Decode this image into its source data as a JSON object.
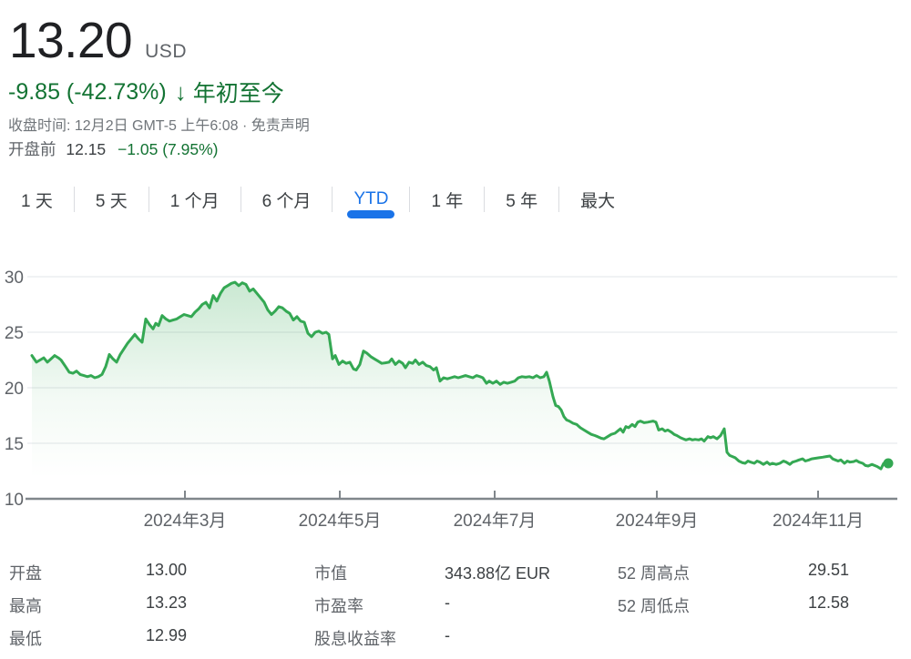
{
  "colors": {
    "accent_blue": "#1a73e8",
    "text_dark": "#202124",
    "text_gray": "#5f6368",
    "text_value": "#3c4043",
    "green_text": "#137333",
    "line_green": "#34a853",
    "grid": "#e8eaed",
    "axis": "#80868b",
    "divider": "#dadce0"
  },
  "header": {
    "price": "13.20",
    "currency": "USD",
    "change": "-9.85 (-42.73%)",
    "arrow": "↓",
    "period": "年初至今",
    "close_info": "收盘时间: 12月2日 GMT-5 上午6:08 · 免责声明",
    "premarket": {
      "label": "开盘前",
      "price": "12.15",
      "change": "−1.05 (7.95%)"
    }
  },
  "tabs": [
    {
      "key": "1d",
      "label": "1 天",
      "selected": false
    },
    {
      "key": "5d",
      "label": "5 天",
      "selected": false
    },
    {
      "key": "1m",
      "label": "1 个月",
      "selected": false
    },
    {
      "key": "6m",
      "label": "6 个月",
      "selected": false
    },
    {
      "key": "ytd",
      "label": "YTD",
      "selected": true
    },
    {
      "key": "1y",
      "label": "1 年",
      "selected": false
    },
    {
      "key": "5y",
      "label": "5 年",
      "selected": false
    },
    {
      "key": "max",
      "label": "最大",
      "selected": false
    }
  ],
  "chart_data": {
    "type": "area",
    "title": "YTD price chart",
    "xlabel": "",
    "ylabel": "",
    "ylim": [
      10,
      30
    ],
    "yticks": [
      30,
      25,
      20,
      15,
      10
    ],
    "grid": true,
    "legend": false,
    "end_dot": true,
    "xticks": [
      {
        "label": "2024年3月",
        "x": 168
      },
      {
        "label": "2024年5月",
        "x": 338
      },
      {
        "label": "2024年7月",
        "x": 508
      },
      {
        "label": "2024年9月",
        "x": 686
      },
      {
        "label": "2024年11月",
        "x": 863
      }
    ],
    "x_range": [
      0,
      940
    ],
    "points": [
      [
        0,
        22.9
      ],
      [
        5,
        22.3
      ],
      [
        9,
        22.5
      ],
      [
        13,
        22.7
      ],
      [
        17,
        22.3
      ],
      [
        21,
        22.6
      ],
      [
        25,
        22.9
      ],
      [
        29,
        22.7
      ],
      [
        32,
        22.5
      ],
      [
        37,
        21.9
      ],
      [
        41,
        21.4
      ],
      [
        45,
        21.3
      ],
      [
        49,
        21.5
      ],
      [
        53,
        21.2
      ],
      [
        57,
        21.1
      ],
      [
        61,
        21.0
      ],
      [
        65,
        21.1
      ],
      [
        69,
        20.9
      ],
      [
        73,
        21.0
      ],
      [
        77,
        21.2
      ],
      [
        81,
        21.9
      ],
      [
        85,
        23.0
      ],
      [
        89,
        22.6
      ],
      [
        93,
        22.3
      ],
      [
        97,
        23.0
      ],
      [
        101,
        23.5
      ],
      [
        105,
        24.0
      ],
      [
        109,
        24.4
      ],
      [
        113,
        24.8
      ],
      [
        117,
        24.4
      ],
      [
        121,
        24.1
      ],
      [
        125,
        26.2
      ],
      [
        129,
        25.7
      ],
      [
        133,
        25.3
      ],
      [
        136,
        25.8
      ],
      [
        139,
        25.6
      ],
      [
        143,
        26.5
      ],
      [
        147,
        26.2
      ],
      [
        151,
        26.0
      ],
      [
        155,
        26.1
      ],
      [
        159,
        26.2
      ],
      [
        163,
        26.4
      ],
      [
        167,
        26.6
      ],
      [
        171,
        26.5
      ],
      [
        175,
        26.4
      ],
      [
        179,
        26.8
      ],
      [
        183,
        27.1
      ],
      [
        187,
        27.5
      ],
      [
        191,
        27.7
      ],
      [
        195,
        27.2
      ],
      [
        199,
        28.3
      ],
      [
        203,
        27.8
      ],
      [
        207,
        28.5
      ],
      [
        211,
        29.0
      ],
      [
        215,
        29.2
      ],
      [
        219,
        29.4
      ],
      [
        223,
        29.5
      ],
      [
        227,
        29.2
      ],
      [
        231,
        29.45
      ],
      [
        235,
        29.3
      ],
      [
        239,
        28.7
      ],
      [
        243,
        28.9
      ],
      [
        247,
        28.5
      ],
      [
        251,
        28.1
      ],
      [
        255,
        27.7
      ],
      [
        259,
        27.0
      ],
      [
        263,
        26.6
      ],
      [
        267,
        26.9
      ],
      [
        271,
        27.3
      ],
      [
        275,
        27.2
      ],
      [
        279,
        26.9
      ],
      [
        283,
        26.7
      ],
      [
        287,
        26.1
      ],
      [
        291,
        26.4
      ],
      [
        295,
        26.0
      ],
      [
        299,
        25.9
      ],
      [
        303,
        24.9
      ],
      [
        307,
        24.6
      ],
      [
        311,
        25.0
      ],
      [
        315,
        25.1
      ],
      [
        319,
        24.9
      ],
      [
        323,
        25.0
      ],
      [
        326,
        24.8
      ],
      [
        330,
        22.6
      ],
      [
        333,
        22.9
      ],
      [
        337,
        22.1
      ],
      [
        341,
        22.4
      ],
      [
        345,
        22.2
      ],
      [
        349,
        22.3
      ],
      [
        353,
        21.7
      ],
      [
        356,
        21.6
      ],
      [
        360,
        22.1
      ],
      [
        364,
        23.3
      ],
      [
        368,
        23.1
      ],
      [
        372,
        22.8
      ],
      [
        376,
        22.6
      ],
      [
        380,
        22.4
      ],
      [
        384,
        22.2
      ],
      [
        388,
        22.25
      ],
      [
        392,
        22.3
      ],
      [
        395,
        22.6
      ],
      [
        399,
        22.1
      ],
      [
        403,
        22.4
      ],
      [
        407,
        22.2
      ],
      [
        410,
        21.8
      ],
      [
        414,
        22.3
      ],
      [
        418,
        22.2
      ],
      [
        421,
        22.5
      ],
      [
        425,
        22.1
      ],
      [
        429,
        22.3
      ],
      [
        433,
        22.0
      ],
      [
        437,
        21.9
      ],
      [
        441,
        21.6
      ],
      [
        444,
        21.8
      ],
      [
        448,
        20.6
      ],
      [
        452,
        20.9
      ],
      [
        456,
        20.8
      ],
      [
        460,
        20.9
      ],
      [
        464,
        21.0
      ],
      [
        468,
        20.9
      ],
      [
        472,
        21.0
      ],
      [
        476,
        21.1
      ],
      [
        480,
        21.0
      ],
      [
        484,
        20.9
      ],
      [
        488,
        21.1
      ],
      [
        492,
        21.0
      ],
      [
        495,
        20.9
      ],
      [
        499,
        20.4
      ],
      [
        502,
        20.6
      ],
      [
        506,
        20.4
      ],
      [
        510,
        20.6
      ],
      [
        514,
        20.3
      ],
      [
        518,
        20.5
      ],
      [
        522,
        20.4
      ],
      [
        526,
        20.5
      ],
      [
        530,
        20.6
      ],
      [
        534,
        20.9
      ],
      [
        538,
        21.0
      ],
      [
        542,
        20.95
      ],
      [
        546,
        21.0
      ],
      [
        550,
        20.9
      ],
      [
        554,
        21.1
      ],
      [
        558,
        20.9
      ],
      [
        562,
        21.0
      ],
      [
        565,
        21.4
      ],
      [
        568,
        20.6
      ],
      [
        572,
        19.2
      ],
      [
        575,
        18.4
      ],
      [
        578,
        18.3
      ],
      [
        581,
        18.0
      ],
      [
        584,
        17.4
      ],
      [
        587,
        17.1
      ],
      [
        590,
        17.0
      ],
      [
        594,
        16.8
      ],
      [
        598,
        16.7
      ],
      [
        602,
        16.4
      ],
      [
        606,
        16.2
      ],
      [
        610,
        16.0
      ],
      [
        614,
        15.8
      ],
      [
        618,
        15.7
      ],
      [
        621,
        15.6
      ],
      [
        625,
        15.45
      ],
      [
        628,
        15.4
      ],
      [
        632,
        15.6
      ],
      [
        636,
        15.8
      ],
      [
        640,
        15.9
      ],
      [
        643,
        16.1
      ],
      [
        646,
        16.3
      ],
      [
        649,
        16.0
      ],
      [
        652,
        16.5
      ],
      [
        655,
        16.4
      ],
      [
        659,
        16.7
      ],
      [
        662,
        16.5
      ],
      [
        665,
        16.9
      ],
      [
        668,
        17.0
      ],
      [
        672,
        16.85
      ],
      [
        676,
        16.9
      ],
      [
        679,
        16.95
      ],
      [
        682,
        17.0
      ],
      [
        685,
        16.9
      ],
      [
        688,
        16.2
      ],
      [
        692,
        16.3
      ],
      [
        695,
        16.1
      ],
      [
        698,
        16.2
      ],
      [
        702,
        16.0
      ],
      [
        705,
        15.8
      ],
      [
        708,
        15.7
      ],
      [
        712,
        15.5
      ],
      [
        715,
        15.4
      ],
      [
        718,
        15.3
      ],
      [
        722,
        15.4
      ],
      [
        725,
        15.3
      ],
      [
        728,
        15.35
      ],
      [
        732,
        15.3
      ],
      [
        735,
        15.4
      ],
      [
        738,
        15.2
      ],
      [
        742,
        15.6
      ],
      [
        745,
        15.5
      ],
      [
        748,
        15.6
      ],
      [
        752,
        15.4
      ],
      [
        756,
        15.7
      ],
      [
        760,
        16.3
      ],
      [
        763,
        14.2
      ],
      [
        766,
        13.9
      ],
      [
        769,
        13.8
      ],
      [
        772,
        13.7
      ],
      [
        776,
        13.4
      ],
      [
        780,
        13.25
      ],
      [
        783,
        13.2
      ],
      [
        786,
        13.4
      ],
      [
        789,
        13.3
      ],
      [
        793,
        13.2
      ],
      [
        796,
        13.4
      ],
      [
        799,
        13.3
      ],
      [
        803,
        13.1
      ],
      [
        807,
        13.3
      ],
      [
        810,
        13.1
      ],
      [
        813,
        13.2
      ],
      [
        817,
        13.1
      ],
      [
        821,
        13.2
      ],
      [
        825,
        13.4
      ],
      [
        828,
        13.3
      ],
      [
        832,
        13.1
      ],
      [
        835,
        13.3
      ],
      [
        839,
        13.4
      ],
      [
        842,
        13.5
      ],
      [
        846,
        13.6
      ],
      [
        849,
        13.4
      ],
      [
        853,
        13.5
      ],
      [
        856,
        13.6
      ],
      [
        860,
        13.65
      ],
      [
        864,
        13.7
      ],
      [
        868,
        13.75
      ],
      [
        872,
        13.8
      ],
      [
        876,
        13.85
      ],
      [
        879,
        13.6
      ],
      [
        882,
        13.5
      ],
      [
        885,
        13.4
      ],
      [
        888,
        13.5
      ],
      [
        892,
        13.2
      ],
      [
        895,
        13.4
      ],
      [
        898,
        13.3
      ],
      [
        902,
        13.35
      ],
      [
        905,
        13.45
      ],
      [
        908,
        13.3
      ],
      [
        912,
        13.2
      ],
      [
        915,
        13.0
      ],
      [
        918,
        12.95
      ],
      [
        922,
        13.1
      ],
      [
        925,
        13.0
      ],
      [
        928,
        12.9
      ],
      [
        932,
        12.7
      ],
      [
        935,
        13.2
      ],
      [
        940,
        13.2
      ]
    ]
  },
  "stats": {
    "col1": [
      {
        "label": "开盘",
        "value": "13.00"
      },
      {
        "label": "最高",
        "value": "13.23"
      },
      {
        "label": "最低",
        "value": "12.99"
      }
    ],
    "col2": [
      {
        "label": "市值",
        "value": "343.88亿 EUR"
      },
      {
        "label": "市盈率",
        "value": "-"
      },
      {
        "label": "股息收益率",
        "value": "-"
      }
    ],
    "col3": [
      {
        "label": "52 周高点",
        "value": "29.51"
      },
      {
        "label": "52 周低点",
        "value": "12.58"
      }
    ]
  }
}
